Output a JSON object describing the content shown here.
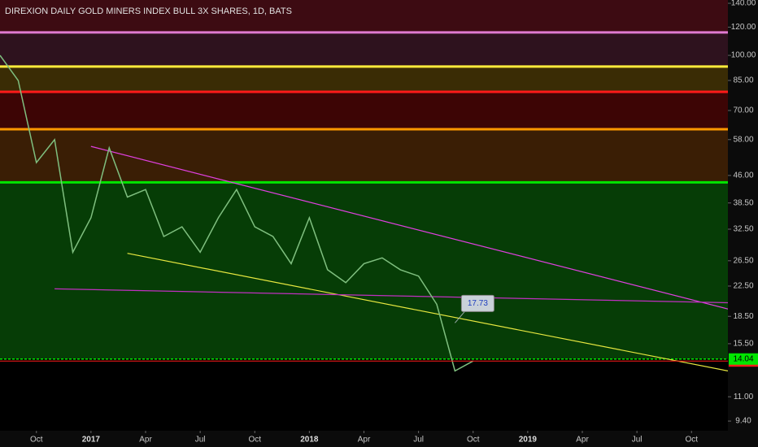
{
  "chart_data": {
    "type": "line",
    "title": "DIREXION DAILY GOLD MINERS INDEX BULL 3X SHARES, 1D, BATS",
    "log_scale": true,
    "x": [
      "2016-08",
      "2016-09",
      "2016-10",
      "2016-11",
      "2016-12",
      "2017-01",
      "2017-02",
      "2017-03",
      "2017-04",
      "2017-05",
      "2017-06",
      "2017-07",
      "2017-08",
      "2017-09",
      "2017-10",
      "2017-11",
      "2017-12",
      "2018-01",
      "2018-02",
      "2018-03",
      "2018-04",
      "2018-05",
      "2018-06",
      "2018-07",
      "2018-08",
      "2018-09",
      "2018-10"
    ],
    "series": [
      {
        "color": "#7fbf7f",
        "values": [
          100,
          85,
          50,
          58,
          28,
          35,
          55,
          40,
          42,
          31,
          33,
          28,
          35,
          42,
          33,
          31,
          26,
          35,
          25,
          23,
          26,
          27,
          25,
          24,
          20,
          13,
          13.86
        ]
      }
    ],
    "xlim": [
      "2016-08",
      "2019-12"
    ],
    "xticks": [
      {
        "value": "2016-10",
        "label": "Oct"
      },
      {
        "value": "2017-01",
        "label": "2017"
      },
      {
        "value": "2017-04",
        "label": "Apr"
      },
      {
        "value": "2017-07",
        "label": "Jul"
      },
      {
        "value": "2017-10",
        "label": "Oct"
      },
      {
        "value": "2018-01",
        "label": "2018"
      },
      {
        "value": "2018-04",
        "label": "Apr"
      },
      {
        "value": "2018-07",
        "label": "Jul"
      },
      {
        "value": "2018-10",
        "label": "Oct"
      },
      {
        "value": "2019-01",
        "label": "2019"
      },
      {
        "value": "2019-04",
        "label": "Apr"
      },
      {
        "value": "2019-07",
        "label": "Jul"
      },
      {
        "value": "2019-10",
        "label": "Oct"
      }
    ],
    "ylim": [
      8.83,
      143
    ],
    "yticks": [
      {
        "value": 140,
        "label": "140.00"
      },
      {
        "value": 120,
        "label": "120.00"
      },
      {
        "value": 100,
        "label": "100.00"
      },
      {
        "value": 85,
        "label": "85.00"
      },
      {
        "value": 70,
        "label": "70.00"
      },
      {
        "value": 58,
        "label": "58.00"
      },
      {
        "value": 46,
        "label": "46.00"
      },
      {
        "value": 38.5,
        "label": "38.50"
      },
      {
        "value": 32.5,
        "label": "32.50"
      },
      {
        "value": 26.5,
        "label": "26.50"
      },
      {
        "value": 22.5,
        "label": "22.50"
      },
      {
        "value": 18.5,
        "label": "18.50"
      },
      {
        "value": 15.5,
        "label": "15.50"
      },
      {
        "value": 11,
        "label": "11.00"
      },
      {
        "value": 9.4,
        "label": "9.40"
      }
    ],
    "levels": [
      {
        "value": 116,
        "color": "#e07ad0",
        "fill": "#3d0b12"
      },
      {
        "value": 93,
        "color": "#ffeb3b",
        "fill": "#2e121e"
      },
      {
        "value": 79,
        "color": "#ff1a1a",
        "fill": "#3a2c05"
      },
      {
        "value": 62,
        "color": "#ff9800",
        "fill": "#3d0505"
      },
      {
        "value": 44,
        "color": "#00e600",
        "fill": "#3a1e05"
      },
      {
        "value": 14.04,
        "color": "#00e600",
        "fill": "#063d06",
        "label": "14.04"
      }
    ],
    "last_price_color": "#ff1a1a",
    "trendlines": [
      {
        "color": "#e040e0",
        "points": [
          [
            "2017-01",
            55.5
          ],
          [
            "2019-12",
            19.4
          ]
        ]
      },
      {
        "color": "#e8e840",
        "points": [
          [
            "2017-03",
            27.8
          ],
          [
            "2019-12",
            13.0
          ]
        ]
      },
      {
        "color": "#c030c0",
        "points": [
          [
            "2016-11",
            22.1
          ],
          [
            "2019-12",
            20.2
          ]
        ]
      }
    ],
    "annotations": [
      {
        "x": "2018-09",
        "value": 17.73
      }
    ]
  }
}
